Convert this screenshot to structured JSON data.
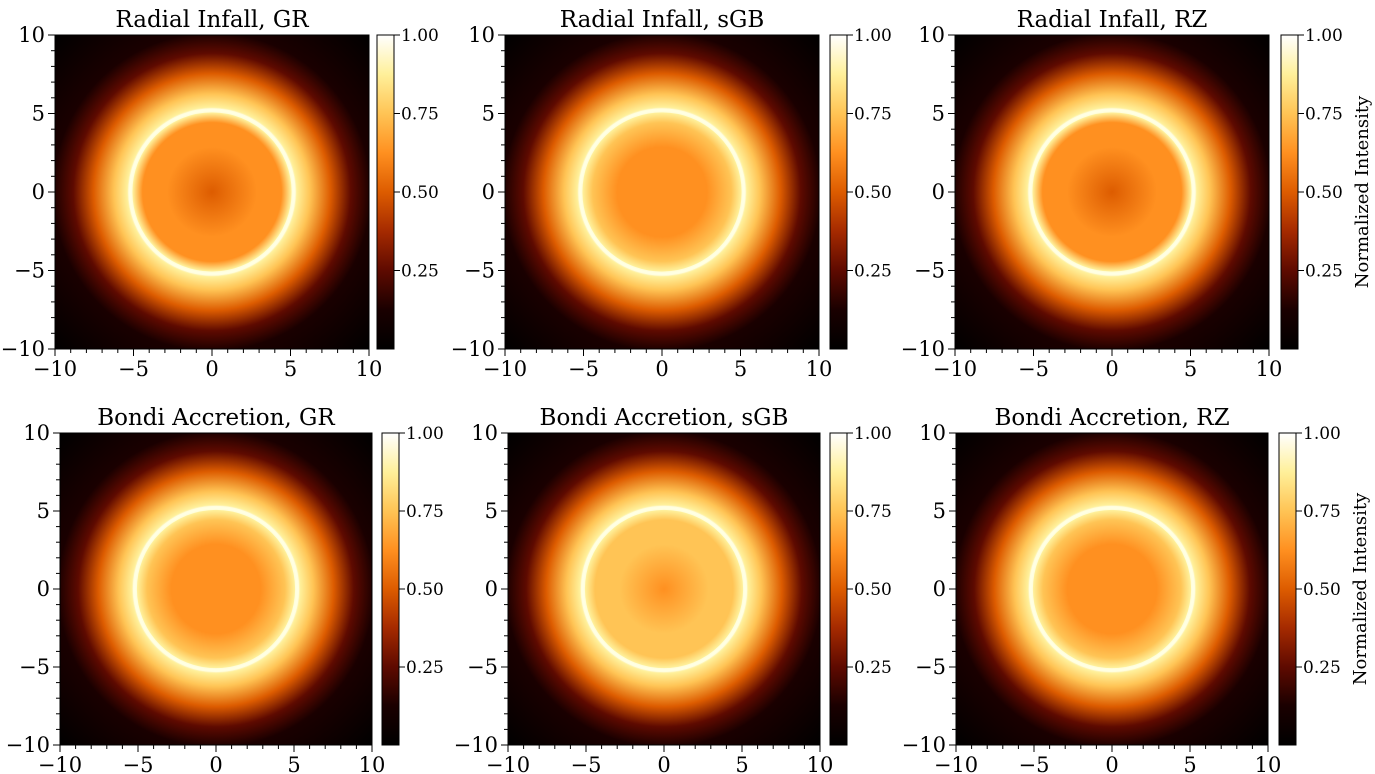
{
  "figure": {
    "cmap_stops": [
      "#000000",
      "#1a0000",
      "#5e0a00",
      "#a52a00",
      "#dd5c00",
      "#ff9020",
      "#ffc455",
      "#fff09a",
      "#ffffff"
    ]
  },
  "chart_data": [
    {
      "type": "heatmap",
      "title": "Radial Infall, GR",
      "xlim": [
        -10,
        10
      ],
      "ylim": [
        -10,
        10
      ],
      "xticks": [
        "−10",
        "−5",
        "0",
        "5",
        "10"
      ],
      "yticks": [
        "−10",
        "−5",
        "0",
        "5",
        "10"
      ],
      "colorbar": {
        "ticks": [
          "0.25",
          "0.50",
          "0.75",
          "1.00"
        ],
        "label": "",
        "range": [
          0,
          1
        ]
      },
      "ring_radius": 5.2,
      "center_value": 0.55,
      "edge_value": 0.0
    },
    {
      "type": "heatmap",
      "title": "Radial Infall, sGB",
      "xlim": [
        -10,
        10
      ],
      "ylim": [
        -10,
        10
      ],
      "xticks": [
        "−10",
        "−5",
        "0",
        "5",
        "10"
      ],
      "yticks": [
        "−10",
        "−5",
        "0",
        "5",
        "10"
      ],
      "colorbar": {
        "ticks": [
          "0.25",
          "0.50",
          "0.75",
          "1.00"
        ],
        "label": "",
        "range": [
          0,
          1
        ]
      },
      "ring_radius": 5.2,
      "center_value": 0.58,
      "edge_value": 0.0
    },
    {
      "type": "heatmap",
      "title": "Radial Infall, RZ",
      "xlim": [
        -10,
        10
      ],
      "ylim": [
        -10,
        10
      ],
      "xticks": [
        "−10",
        "−5",
        "0",
        "5",
        "10"
      ],
      "yticks": [
        "−10",
        "−5",
        "0",
        "5",
        "10"
      ],
      "colorbar": {
        "ticks": [
          "0.25",
          "0.50",
          "0.75",
          "1.00"
        ],
        "label": "Normalized Intensity",
        "range": [
          0,
          1
        ]
      },
      "ring_radius": 5.2,
      "center_value": 0.55,
      "edge_value": 0.0
    },
    {
      "type": "heatmap",
      "title": "Bondi Accretion, GR",
      "xlim": [
        -10,
        10
      ],
      "ylim": [
        -10,
        10
      ],
      "xticks": [
        "−10",
        "−5",
        "0",
        "5",
        "10"
      ],
      "yticks": [
        "−10",
        "−5",
        "0",
        "5",
        "10"
      ],
      "colorbar": {
        "ticks": [
          "0.25",
          "0.50",
          "0.75",
          "1.00"
        ],
        "label": "",
        "range": [
          0,
          1
        ]
      },
      "ring_radius": 5.2,
      "center_value": 0.66,
      "edge_value": 0.0
    },
    {
      "type": "heatmap",
      "title": "Bondi Accretion, sGB",
      "xlim": [
        -10,
        10
      ],
      "ylim": [
        -10,
        10
      ],
      "xticks": [
        "−10",
        "−5",
        "0",
        "5",
        "10"
      ],
      "yticks": [
        "−10",
        "−5",
        "0",
        "5",
        "10"
      ],
      "colorbar": {
        "ticks": [
          "0.25",
          "0.50",
          "0.75",
          "1.00"
        ],
        "label": "",
        "range": [
          0,
          1
        ]
      },
      "ring_radius": 5.2,
      "center_value": 0.68,
      "edge_value": 0.0
    },
    {
      "type": "heatmap",
      "title": "Bondi Accretion, RZ",
      "xlim": [
        -10,
        10
      ],
      "ylim": [
        -10,
        10
      ],
      "xticks": [
        "−10",
        "−5",
        "0",
        "5",
        "10"
      ],
      "yticks": [
        "−10",
        "−5",
        "0",
        "5",
        "10"
      ],
      "colorbar": {
        "ticks": [
          "0.25",
          "0.50",
          "0.75",
          "1.00"
        ],
        "label": "Normalized Intensity",
        "range": [
          0,
          1
        ]
      },
      "ring_radius": 5.2,
      "center_value": 0.66,
      "edge_value": 0.0
    }
  ]
}
